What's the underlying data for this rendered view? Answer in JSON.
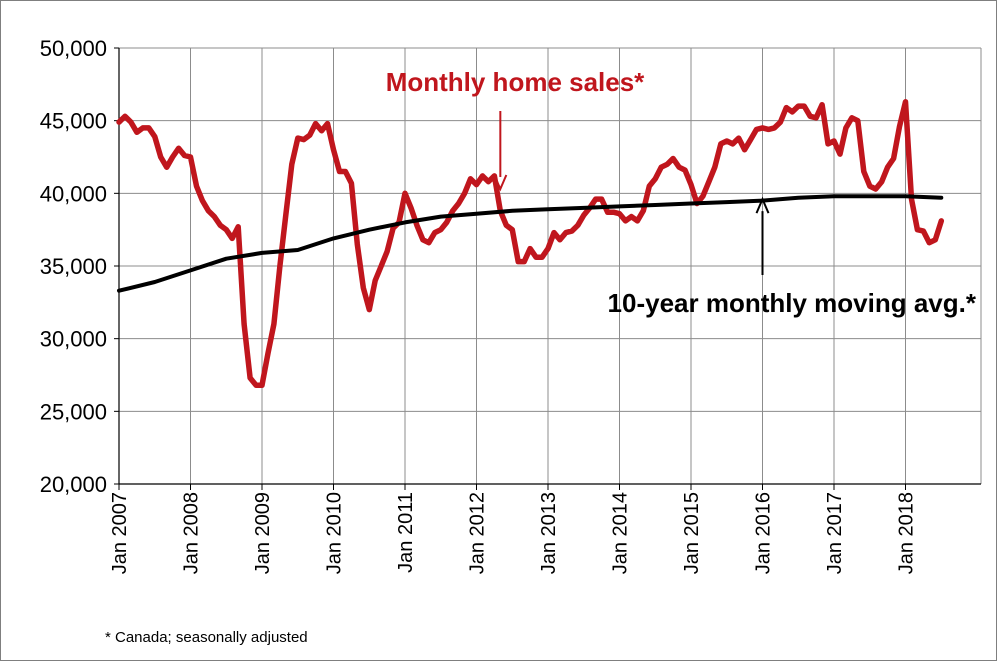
{
  "chart_data": {
    "type": "line",
    "title": "",
    "xlabel": "",
    "ylabel": "",
    "ylim": [
      20000,
      50000
    ],
    "y_ticks": [
      20000,
      25000,
      30000,
      35000,
      40000,
      45000,
      50000
    ],
    "y_tick_labels": [
      "20,000",
      "25,000",
      "30,000",
      "35,000",
      "40,000",
      "45,000",
      "50,000"
    ],
    "x_tick_labels": [
      "Jan 2007",
      "Jan 2008",
      "Jan 2009",
      "Jan 2010",
      "Jan 2011",
      "Jan 2012",
      "Jan 2013",
      "Jan 2014",
      "Jan 2015",
      "Jan 2016",
      "Jan 2017",
      "Jan 2018"
    ],
    "x_start": "2007-01",
    "x_end": "2018-07",
    "grid": true,
    "series": [
      {
        "name": "Monthly home sales*",
        "color": "#c0161d",
        "points": [
          [
            "2007-01",
            44900
          ],
          [
            "2007-02",
            45300
          ],
          [
            "2007-03",
            44900
          ],
          [
            "2007-04",
            44200
          ],
          [
            "2007-05",
            44500
          ],
          [
            "2007-06",
            44500
          ],
          [
            "2007-07",
            43900
          ],
          [
            "2007-08",
            42500
          ],
          [
            "2007-09",
            41800
          ],
          [
            "2007-10",
            42500
          ],
          [
            "2007-11",
            43100
          ],
          [
            "2007-12",
            42600
          ],
          [
            "2008-01",
            42500
          ],
          [
            "2008-02",
            40500
          ],
          [
            "2008-03",
            39500
          ],
          [
            "2008-04",
            38800
          ],
          [
            "2008-05",
            38400
          ],
          [
            "2008-06",
            37800
          ],
          [
            "2008-07",
            37500
          ],
          [
            "2008-08",
            36900
          ],
          [
            "2008-09",
            37700
          ],
          [
            "2008-10",
            31000
          ],
          [
            "2008-11",
            27300
          ],
          [
            "2008-12",
            26800
          ],
          [
            "2009-01",
            26800
          ],
          [
            "2009-02",
            29000
          ],
          [
            "2009-03",
            31000
          ],
          [
            "2009-04",
            35000
          ],
          [
            "2009-05",
            38500
          ],
          [
            "2009-06",
            42000
          ],
          [
            "2009-07",
            43800
          ],
          [
            "2009-08",
            43700
          ],
          [
            "2009-09",
            44000
          ],
          [
            "2009-10",
            44800
          ],
          [
            "2009-11",
            44300
          ],
          [
            "2009-12",
            44800
          ],
          [
            "2010-01",
            43000
          ],
          [
            "2010-02",
            41500
          ],
          [
            "2010-03",
            41500
          ],
          [
            "2010-04",
            40700
          ],
          [
            "2010-05",
            36500
          ],
          [
            "2010-06",
            33500
          ],
          [
            "2010-07",
            32000
          ],
          [
            "2010-08",
            34000
          ],
          [
            "2010-09",
            35000
          ],
          [
            "2010-10",
            36000
          ],
          [
            "2010-11",
            37600
          ],
          [
            "2010-12",
            38000
          ],
          [
            "2011-01",
            40000
          ],
          [
            "2011-02",
            39000
          ],
          [
            "2011-03",
            37800
          ],
          [
            "2011-04",
            36800
          ],
          [
            "2011-05",
            36600
          ],
          [
            "2011-06",
            37300
          ],
          [
            "2011-07",
            37500
          ],
          [
            "2011-08",
            38000
          ],
          [
            "2011-09",
            38800
          ],
          [
            "2011-10",
            39300
          ],
          [
            "2011-11",
            40000
          ],
          [
            "2011-12",
            41000
          ],
          [
            "2012-01",
            40600
          ],
          [
            "2012-02",
            41200
          ],
          [
            "2012-03",
            40800
          ],
          [
            "2012-04",
            41200
          ],
          [
            "2012-05",
            38800
          ],
          [
            "2012-06",
            37800
          ],
          [
            "2012-07",
            37500
          ],
          [
            "2012-08",
            35300
          ],
          [
            "2012-09",
            35300
          ],
          [
            "2012-10",
            36200
          ],
          [
            "2012-11",
            35600
          ],
          [
            "2012-12",
            35600
          ],
          [
            "2013-01",
            36200
          ],
          [
            "2013-02",
            37300
          ],
          [
            "2013-03",
            36800
          ],
          [
            "2013-04",
            37300
          ],
          [
            "2013-05",
            37400
          ],
          [
            "2013-06",
            37800
          ],
          [
            "2013-07",
            38500
          ],
          [
            "2013-08",
            39000
          ],
          [
            "2013-09",
            39600
          ],
          [
            "2013-10",
            39600
          ],
          [
            "2013-11",
            38700
          ],
          [
            "2013-12",
            38700
          ],
          [
            "2014-01",
            38600
          ],
          [
            "2014-02",
            38100
          ],
          [
            "2014-03",
            38400
          ],
          [
            "2014-04",
            38100
          ],
          [
            "2014-05",
            38800
          ],
          [
            "2014-06",
            40500
          ],
          [
            "2014-07",
            41000
          ],
          [
            "2014-08",
            41800
          ],
          [
            "2014-09",
            42000
          ],
          [
            "2014-10",
            42400
          ],
          [
            "2014-11",
            41800
          ],
          [
            "2014-12",
            41600
          ],
          [
            "2015-01",
            40600
          ],
          [
            "2015-02",
            39300
          ],
          [
            "2015-03",
            39800
          ],
          [
            "2015-04",
            40800
          ],
          [
            "2015-05",
            41800
          ],
          [
            "2015-06",
            43400
          ],
          [
            "2015-07",
            43600
          ],
          [
            "2015-08",
            43400
          ],
          [
            "2015-09",
            43800
          ],
          [
            "2015-10",
            43000
          ],
          [
            "2015-11",
            43700
          ],
          [
            "2015-12",
            44400
          ],
          [
            "2016-01",
            44500
          ],
          [
            "2016-02",
            44400
          ],
          [
            "2016-03",
            44500
          ],
          [
            "2016-04",
            44900
          ],
          [
            "2016-05",
            45900
          ],
          [
            "2016-06",
            45600
          ],
          [
            "2016-07",
            46000
          ],
          [
            "2016-08",
            46000
          ],
          [
            "2016-09",
            45300
          ],
          [
            "2016-10",
            45200
          ],
          [
            "2016-11",
            46100
          ],
          [
            "2016-12",
            43400
          ],
          [
            "2017-01",
            43600
          ],
          [
            "2017-02",
            42700
          ],
          [
            "2017-03",
            44500
          ],
          [
            "2017-04",
            45200
          ],
          [
            "2017-05",
            45000
          ],
          [
            "2017-06",
            41500
          ],
          [
            "2017-07",
            40500
          ],
          [
            "2017-08",
            40300
          ],
          [
            "2017-09",
            40800
          ],
          [
            "2017-10",
            41800
          ],
          [
            "2017-11",
            42400
          ],
          [
            "2017-12",
            44600
          ],
          [
            "2018-01",
            46300
          ],
          [
            "2018-02",
            39600
          ],
          [
            "2018-03",
            37500
          ],
          [
            "2018-04",
            37400
          ],
          [
            "2018-05",
            36600
          ],
          [
            "2018-06",
            36800
          ],
          [
            "2018-07",
            38100
          ]
        ]
      },
      {
        "name": "10-year monthly moving avg.*",
        "color": "#000000",
        "points": [
          [
            "2007-01",
            33300
          ],
          [
            "2007-07",
            33900
          ],
          [
            "2008-01",
            34700
          ],
          [
            "2008-07",
            35500
          ],
          [
            "2009-01",
            35900
          ],
          [
            "2009-07",
            36100
          ],
          [
            "2010-01",
            36900
          ],
          [
            "2010-07",
            37500
          ],
          [
            "2011-01",
            38000
          ],
          [
            "2011-07",
            38400
          ],
          [
            "2012-01",
            38600
          ],
          [
            "2012-07",
            38800
          ],
          [
            "2013-01",
            38900
          ],
          [
            "2013-07",
            39000
          ],
          [
            "2014-01",
            39100
          ],
          [
            "2014-07",
            39200
          ],
          [
            "2015-01",
            39300
          ],
          [
            "2015-07",
            39400
          ],
          [
            "2016-01",
            39500
          ],
          [
            "2016-07",
            39700
          ],
          [
            "2017-01",
            39800
          ],
          [
            "2017-07",
            39800
          ],
          [
            "2018-01",
            39800
          ],
          [
            "2018-07",
            39700
          ]
        ]
      }
    ],
    "annotations": [
      {
        "text": "Monthly home sales*",
        "color": "#c0161d",
        "arrow_to": [
          "2012-05",
          40300
        ]
      },
      {
        "text": "10-year monthly moving avg.*",
        "color": "#000000",
        "arrow_to": [
          "2016-01",
          39600
        ]
      }
    ],
    "footnote": "* Canada; seasonally adjusted"
  }
}
